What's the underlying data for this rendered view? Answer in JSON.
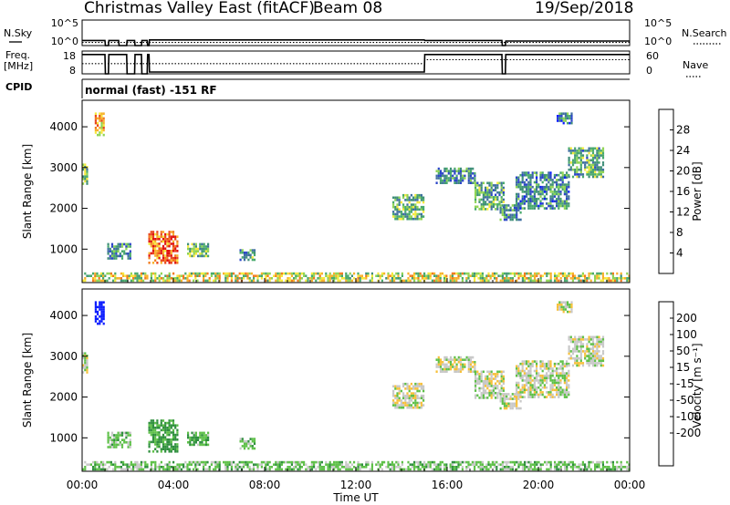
{
  "header": {
    "station": "Christmas Valley East (fitACF)",
    "beam": "Beam 08",
    "date": "19/Sep/2018"
  },
  "summary": {
    "nsky": {
      "label": "N.Sky",
      "tick_top": "10^5",
      "tick_bottom": "10^0"
    },
    "nsearch": {
      "label": "N.Search",
      "tick_top": "10^5",
      "tick_bottom": "10^0"
    },
    "freq": {
      "label_line1": "Freq.",
      "label_line2": "[MHz]",
      "tick_top": "18",
      "tick_bottom": "8"
    },
    "nave": {
      "label": "Nave",
      "tick_top": "60",
      "tick_bottom": "0"
    },
    "cpid": {
      "label": "CPID",
      "text": "normal (fast) -151 RF"
    }
  },
  "colors": {
    "power": [
      "#0a1cff",
      "#2b45c8",
      "#3f6fa0",
      "#3f8f78",
      "#48a96c",
      "#8fd454",
      "#f6e93c",
      "#f8b12b",
      "#f27a1d",
      "#e9461c",
      "#e01010"
    ],
    "velocity": [
      "#e01010",
      "#f0501a",
      "#f79020",
      "#f7c03a",
      "#c8c8c8",
      "#c8c8c8",
      "#5ec048",
      "#2f8f3e",
      "#2a56c4",
      "#0a1cff"
    ],
    "ground_scatter": "#c0c0c0"
  },
  "chart_data": [
    {
      "type": "line",
      "name": "summary-nsky-nsearch",
      "x_range_hours": [
        0,
        24
      ],
      "series": [
        {
          "name": "N.Sky",
          "style": "solid",
          "points": [
            [
              0,
              0.2
            ],
            [
              1.0,
              0.2
            ],
            [
              1.02,
              0
            ],
            [
              1.15,
              0
            ],
            [
              1.17,
              0.2
            ],
            [
              1.6,
              0.2
            ],
            [
              1.62,
              0
            ],
            [
              1.95,
              0
            ],
            [
              1.97,
              0.2
            ],
            [
              2.3,
              0.2
            ],
            [
              2.32,
              0
            ],
            [
              2.6,
              0
            ],
            [
              2.62,
              0.2
            ],
            [
              2.85,
              0.2
            ],
            [
              2.87,
              0
            ],
            [
              2.93,
              0
            ],
            [
              2.95,
              0.22
            ],
            [
              15.0,
              0.22
            ],
            [
              15.02,
              0.2
            ],
            [
              18.4,
              0.2
            ],
            [
              18.42,
              0
            ],
            [
              18.55,
              0
            ],
            [
              18.57,
              0.18
            ],
            [
              24,
              0.18
            ]
          ]
        },
        {
          "name": "N.Search",
          "style": "dotted",
          "points": [
            [
              0,
              0.12
            ],
            [
              24,
              0.12
            ]
          ]
        }
      ]
    },
    {
      "type": "line",
      "name": "summary-freq-nave",
      "x_range_hours": [
        0,
        24
      ],
      "series": [
        {
          "name": "Freq.",
          "style": "solid",
          "points": [
            [
              0,
              0.85
            ],
            [
              1.0,
              0.85
            ],
            [
              1.02,
              0
            ],
            [
              1.15,
              0
            ],
            [
              1.17,
              0.85
            ],
            [
              1.95,
              0.85
            ],
            [
              1.97,
              0
            ],
            [
              2.3,
              0
            ],
            [
              2.32,
              0.85
            ],
            [
              2.6,
              0.85
            ],
            [
              2.62,
              0
            ],
            [
              2.85,
              0
            ],
            [
              2.87,
              0.85
            ],
            [
              2.93,
              0.85
            ],
            [
              2.95,
              0.08
            ],
            [
              15.0,
              0.08
            ],
            [
              15.02,
              0.85
            ],
            [
              18.4,
              0.85
            ],
            [
              18.42,
              0
            ],
            [
              18.55,
              0
            ],
            [
              18.57,
              0.85
            ],
            [
              24,
              0.85
            ]
          ]
        },
        {
          "name": "Nave",
          "style": "dotted",
          "points": [
            [
              0,
              0.45
            ],
            [
              15.0,
              0.45
            ],
            [
              15.02,
              0.62
            ],
            [
              24,
              0.62
            ]
          ]
        }
      ]
    },
    {
      "type": "heatmap",
      "name": "power",
      "x_range_hours": [
        0,
        24
      ],
      "y_range_km": [
        180,
        4650
      ],
      "ylabel": "Slant Range [km]",
      "yticks": [
        "1000",
        "2000",
        "3000",
        "4000"
      ],
      "ytick_values": [
        1000,
        2000,
        3000,
        4000
      ],
      "colorbar": {
        "label": "Power [dB]",
        "ticks": [
          "4",
          "8",
          "12",
          "16",
          "20",
          "24",
          "28"
        ],
        "tick_values": [
          4,
          8,
          12,
          16,
          20,
          24,
          28
        ],
        "range": [
          0,
          32
        ]
      },
      "regions": [
        {
          "t": [
            0.55,
            0.95
          ],
          "r": [
            3800,
            4350
          ],
          "value": 22
        },
        {
          "t": [
            0.0,
            0.25
          ],
          "r": [
            2600,
            3100
          ],
          "value": 14
        },
        {
          "t": [
            1.1,
            2.1
          ],
          "r": [
            750,
            1150
          ],
          "value": 10
        },
        {
          "t": [
            2.9,
            4.2
          ],
          "r": [
            650,
            1450
          ],
          "value": 26
        },
        {
          "t": [
            4.6,
            5.5
          ],
          "r": [
            850,
            1150
          ],
          "value": 13
        },
        {
          "t": [
            6.9,
            7.6
          ],
          "r": [
            750,
            1000
          ],
          "value": 12
        },
        {
          "t": [
            13.6,
            15.0
          ],
          "r": [
            1750,
            2350
          ],
          "value": 13
        },
        {
          "t": [
            15.5,
            17.2
          ],
          "r": [
            2650,
            3000
          ],
          "value": 10
        },
        {
          "t": [
            17.2,
            18.5
          ],
          "r": [
            2000,
            2650
          ],
          "value": 12
        },
        {
          "t": [
            18.3,
            19.2
          ],
          "r": [
            1700,
            2100
          ],
          "value": 10
        },
        {
          "t": [
            19.0,
            21.3
          ],
          "r": [
            2000,
            2900
          ],
          "value": 9
        },
        {
          "t": [
            21.3,
            22.8
          ],
          "r": [
            2800,
            3500
          ],
          "value": 12
        },
        {
          "t": [
            20.8,
            21.5
          ],
          "r": [
            4100,
            4350
          ],
          "value": 9
        },
        {
          "t": [
            0.0,
            24.0
          ],
          "r": [
            200,
            430
          ],
          "value": 18
        }
      ]
    },
    {
      "type": "heatmap",
      "name": "velocity",
      "x_range_hours": [
        0,
        24
      ],
      "y_range_km": [
        180,
        4650
      ],
      "ylabel": "Slant Range [km]",
      "yticks": [
        "1000",
        "2000",
        "3000",
        "4000"
      ],
      "ytick_values": [
        1000,
        2000,
        3000,
        4000
      ],
      "xticks": [
        "00:00",
        "04:00",
        "08:00",
        "12:00",
        "16:00",
        "20:00",
        "00:00"
      ],
      "xtick_values": [
        0,
        4,
        8,
        12,
        16,
        20,
        24
      ],
      "xlabel": "Time UT",
      "colorbar": {
        "label": "Velocity [m s⁻¹]",
        "ticks": [
          "200",
          "100",
          "50",
          "15",
          "-15",
          "-50",
          "-100",
          "-200"
        ],
        "tick_values": [
          200,
          100,
          50,
          15,
          -15,
          -50,
          -100,
          -200
        ]
      },
      "regions": [
        {
          "t": [
            0.55,
            0.95
          ],
          "r": [
            3800,
            4350
          ],
          "value": 260
        },
        {
          "t": [
            0.0,
            0.25
          ],
          "r": [
            2600,
            3100
          ],
          "value": 0
        },
        {
          "t": [
            1.1,
            2.1
          ],
          "r": [
            750,
            1150
          ],
          "value": 30
        },
        {
          "t": [
            2.9,
            4.2
          ],
          "r": [
            650,
            1450
          ],
          "value": 60
        },
        {
          "t": [
            4.6,
            5.5
          ],
          "r": [
            850,
            1150
          ],
          "value": 40
        },
        {
          "t": [
            6.9,
            7.6
          ],
          "r": [
            750,
            1000
          ],
          "value": 40
        },
        {
          "t": [
            13.6,
            15.0
          ],
          "r": [
            1750,
            2350
          ],
          "value": 0
        },
        {
          "t": [
            15.5,
            17.2
          ],
          "r": [
            2650,
            3000
          ],
          "value": 0
        },
        {
          "t": [
            17.2,
            18.5
          ],
          "r": [
            2000,
            2650
          ],
          "value": 0
        },
        {
          "t": [
            18.3,
            19.2
          ],
          "r": [
            1700,
            2100
          ],
          "value": 0
        },
        {
          "t": [
            19.0,
            21.3
          ],
          "r": [
            2000,
            2900
          ],
          "value": 0
        },
        {
          "t": [
            21.3,
            22.8
          ],
          "r": [
            2800,
            3500
          ],
          "value": 0
        },
        {
          "t": [
            20.8,
            21.5
          ],
          "r": [
            4100,
            4350
          ],
          "value": 0
        },
        {
          "t": [
            0.0,
            24.0
          ],
          "r": [
            200,
            430
          ],
          "value": 30
        }
      ]
    }
  ]
}
